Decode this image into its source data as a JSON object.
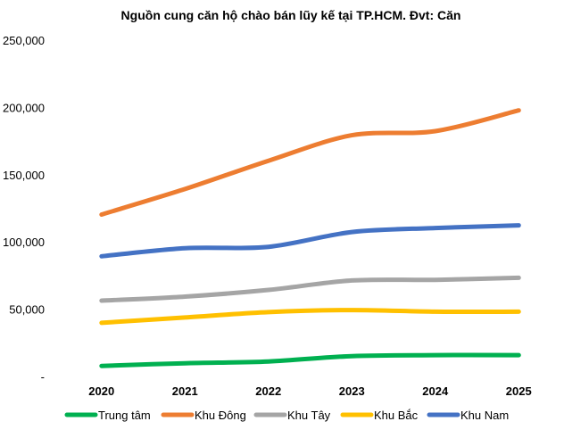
{
  "chart_data": {
    "type": "line",
    "title": "Nguồn cung căn hộ chào bán lũy kế tại TP.HCM. Đvt: Căn",
    "xlabel": "",
    "ylabel": "",
    "categories": [
      "2020",
      "2021",
      "2022",
      "2023",
      "2024",
      "2025"
    ],
    "ylim": [
      0,
      250000
    ],
    "yticks": [
      0,
      50000,
      100000,
      150000,
      200000,
      250000
    ],
    "ytick_labels": [
      "-",
      "50,000",
      "100,000",
      "150,000",
      "200,000",
      "250,000"
    ],
    "grid": false,
    "legend_position": "bottom",
    "series": [
      {
        "name": "Trung tâm",
        "color": "#00B050",
        "values": [
          8500,
          10500,
          11800,
          15800,
          16500,
          16500
        ]
      },
      {
        "name": "Khu Đông",
        "color": "#ED7D31",
        "values": [
          121000,
          140000,
          161000,
          180000,
          183000,
          198500
        ]
      },
      {
        "name": "Khu Tây",
        "color": "#A5A5A5",
        "values": [
          57000,
          60000,
          65000,
          72000,
          72500,
          74000
        ]
      },
      {
        "name": "Khu Bắc",
        "color": "#FFC000",
        "values": [
          40500,
          44500,
          48500,
          50000,
          48800,
          48800
        ]
      },
      {
        "name": "Khu Nam",
        "color": "#4472C4",
        "values": [
          90000,
          96000,
          97000,
          108000,
          111000,
          113000
        ]
      }
    ]
  }
}
